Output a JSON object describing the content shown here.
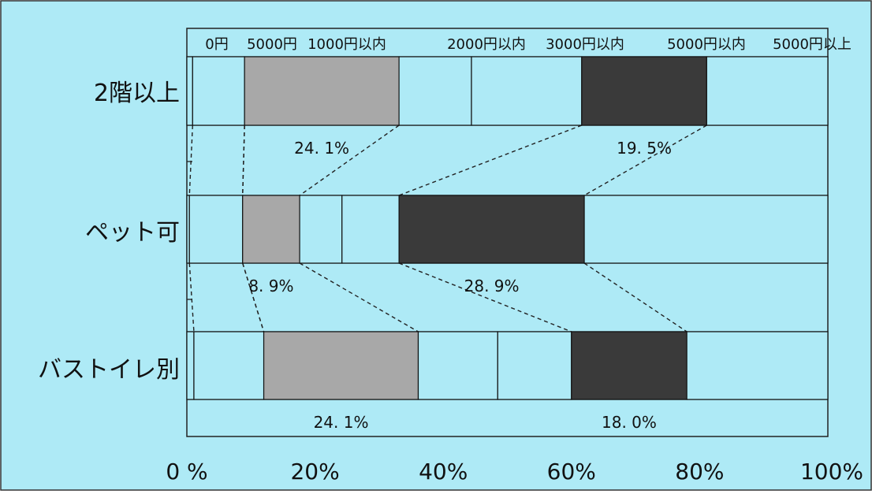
{
  "chart_data": {
    "type": "bar",
    "orientation": "horizontal",
    "stacked": true,
    "percent": true,
    "categories": [
      "2階以上",
      "ペット可",
      "バストイレ別"
    ],
    "segment_legend": [
      "0円",
      "5000円",
      "1000円以内",
      "2000円以内",
      "3000円以内",
      "5000円以内",
      "5000円以上"
    ],
    "segments": [
      {
        "name": "0円",
        "values": [
          0.9,
          0.4,
          1.1
        ],
        "color": "#aeeaf6"
      },
      {
        "name": "5000円",
        "values": [
          8.1,
          8.3,
          10.9
        ],
        "color": "#aeeaf6"
      },
      {
        "name": "1000円以内",
        "values": [
          24.1,
          8.9,
          24.1
        ],
        "color": "#a8a8a8"
      },
      {
        "name": "2000円以内",
        "values": [
          11.3,
          6.6,
          12.4
        ],
        "color": "#aeeaf6"
      },
      {
        "name": "3000円以内",
        "values": [
          17.2,
          8.9,
          11.5
        ],
        "color": "#aeeaf6"
      },
      {
        "name": "5000円以内",
        "values": [
          19.5,
          28.9,
          18.0
        ],
        "color": "#3a3a3a"
      },
      {
        "name": "5000円以上",
        "values": [
          18.9,
          38.0,
          22.0
        ],
        "color": "#aeeaf6"
      }
    ],
    "data_labels": [
      {
        "category": "2階以上",
        "segment": "1000円以内",
        "text": "24. 1%"
      },
      {
        "category": "2階以上",
        "segment": "5000円以内",
        "text": "19. 5%"
      },
      {
        "category": "ペット可",
        "segment": "1000円以内",
        "text": "8. 9%"
      },
      {
        "category": "ペット可",
        "segment": "5000円以内",
        "text": "28. 9%"
      },
      {
        "category": "バストイレ別",
        "segment": "1000円以内",
        "text": "24. 1%"
      },
      {
        "category": "バストイレ別",
        "segment": "5000円以内",
        "text": "18. 0%"
      }
    ],
    "xlim": [
      0,
      100
    ],
    "x_ticks": [
      "0 %",
      "20%",
      "40%",
      "60%",
      "80%",
      "100%"
    ],
    "x_tick_values": [
      0,
      20,
      40,
      60,
      80,
      100
    ],
    "series_connectors": true,
    "legend_position": "top",
    "grid": false,
    "background_color": "#aeeaf6",
    "border_color": "#222222"
  }
}
